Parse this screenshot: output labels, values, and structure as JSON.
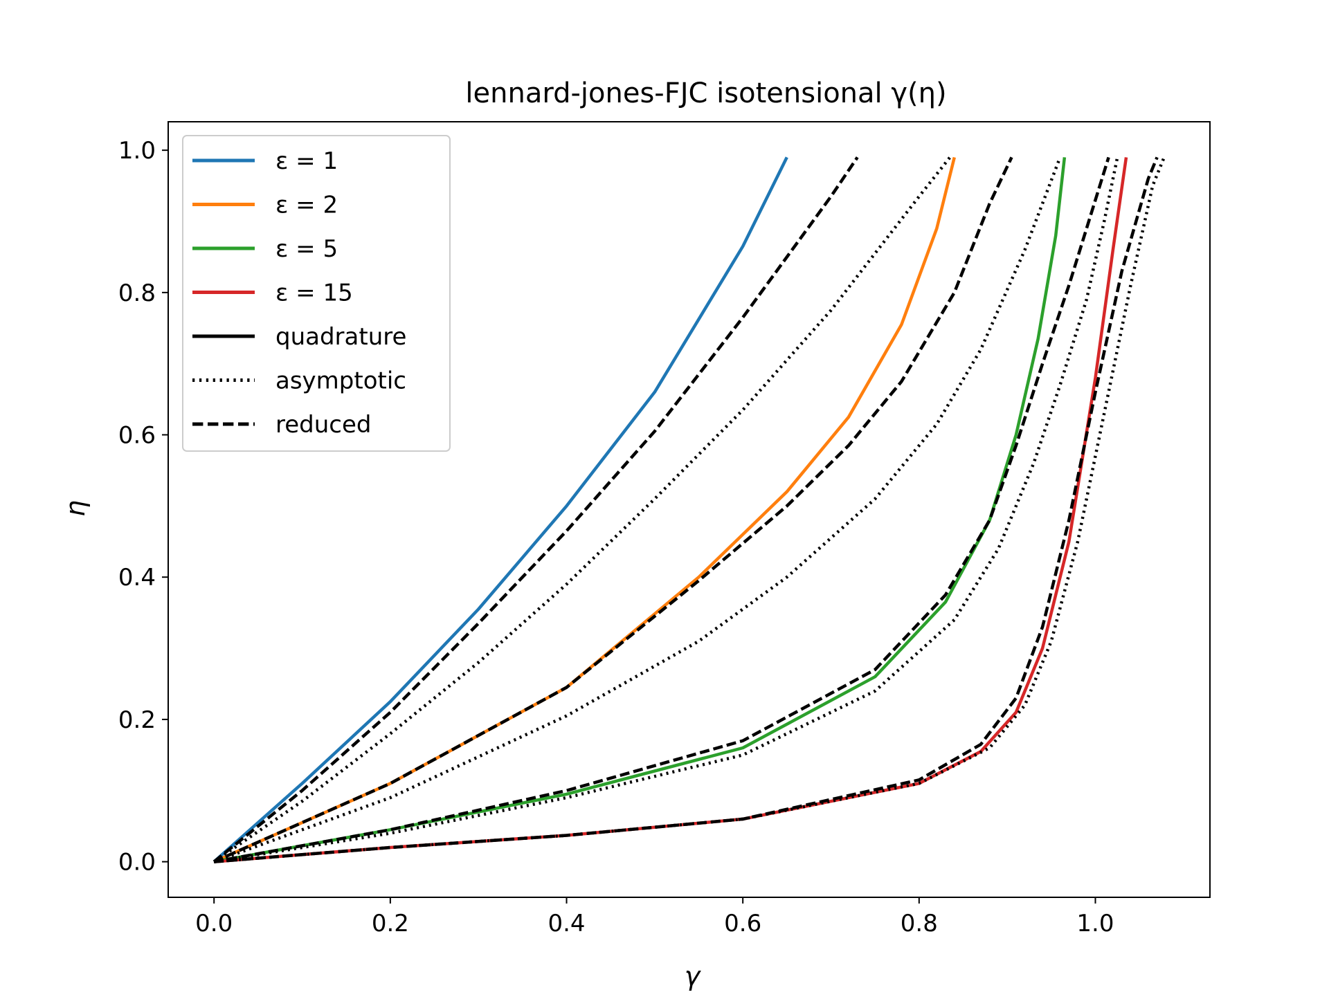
{
  "chart_data": {
    "type": "line",
    "title": "lennard-jones-FJC isotensional γ(η)",
    "xlabel": "γ",
    "ylabel": "η",
    "xlim": [
      -0.052,
      1.13
    ],
    "ylim": [
      -0.05,
      1.04
    ],
    "xticks": [
      0.0,
      0.2,
      0.4,
      0.6,
      0.8,
      1.0
    ],
    "xtick_labels": [
      "0.0",
      "0.2",
      "0.4",
      "0.6",
      "0.8",
      "1.0"
    ],
    "yticks": [
      0.0,
      0.2,
      0.4,
      0.6,
      0.8,
      1.0
    ],
    "ytick_labels": [
      "0.0",
      "0.2",
      "0.4",
      "0.6",
      "0.8",
      "1.0"
    ],
    "grid": false,
    "legend_position": "top-left",
    "legend": [
      {
        "label": "ε = 1",
        "color": "#1f77b4",
        "style": "solid"
      },
      {
        "label": "ε = 2",
        "color": "#ff7f0e",
        "style": "solid"
      },
      {
        "label": "ε = 5",
        "color": "#2ca02c",
        "style": "solid"
      },
      {
        "label": "ε = 15",
        "color": "#d62728",
        "style": "solid"
      },
      {
        "label": "quadrature",
        "color": "#000000",
        "style": "solid"
      },
      {
        "label": "asymptotic",
        "color": "#000000",
        "style": "dotted"
      },
      {
        "label": "reduced",
        "color": "#000000",
        "style": "dashed"
      }
    ],
    "series": [
      {
        "name": "ε = 1",
        "method": "quadrature",
        "color": "#1f77b4",
        "style": "solid",
        "x": [
          0.0,
          0.1,
          0.2,
          0.3,
          0.4,
          0.5,
          0.6,
          0.65
        ],
        "y": [
          0.0,
          0.11,
          0.225,
          0.355,
          0.5,
          0.66,
          0.865,
          0.99
        ]
      },
      {
        "name": "ε = 1",
        "method": "reduced",
        "color": "#000000",
        "style": "dashed",
        "x": [
          0.0,
          0.1,
          0.2,
          0.3,
          0.4,
          0.5,
          0.6,
          0.7,
          0.73
        ],
        "y": [
          0.0,
          0.1,
          0.21,
          0.335,
          0.465,
          0.605,
          0.765,
          0.935,
          0.99
        ]
      },
      {
        "name": "ε = 1",
        "method": "asymptotic",
        "color": "#000000",
        "style": "dotted",
        "x": [
          0.0,
          0.1,
          0.2,
          0.3,
          0.4,
          0.5,
          0.6,
          0.7,
          0.8,
          0.835
        ],
        "y": [
          0.0,
          0.085,
          0.18,
          0.28,
          0.39,
          0.51,
          0.635,
          0.775,
          0.935,
          0.99
        ]
      },
      {
        "name": "ε = 2",
        "method": "quadrature",
        "color": "#ff7f0e",
        "style": "solid",
        "x": [
          0.0,
          0.2,
          0.4,
          0.55,
          0.65,
          0.72,
          0.78,
          0.82,
          0.84
        ],
        "y": [
          0.0,
          0.11,
          0.245,
          0.4,
          0.52,
          0.625,
          0.755,
          0.89,
          0.99
        ]
      },
      {
        "name": "ε = 2",
        "method": "reduced",
        "color": "#000000",
        "style": "dashed",
        "x": [
          0.0,
          0.2,
          0.4,
          0.55,
          0.65,
          0.72,
          0.78,
          0.84,
          0.88,
          0.905
        ],
        "y": [
          0.0,
          0.11,
          0.245,
          0.395,
          0.5,
          0.585,
          0.675,
          0.8,
          0.925,
          0.99
        ]
      },
      {
        "name": "ε = 2",
        "method": "asymptotic",
        "color": "#000000",
        "style": "dotted",
        "x": [
          0.0,
          0.2,
          0.4,
          0.55,
          0.65,
          0.75,
          0.82,
          0.87,
          0.92,
          0.96
        ],
        "y": [
          0.0,
          0.09,
          0.205,
          0.31,
          0.4,
          0.51,
          0.615,
          0.72,
          0.86,
          0.99
        ]
      },
      {
        "name": "ε = 5",
        "method": "quadrature",
        "color": "#2ca02c",
        "style": "solid",
        "x": [
          0.0,
          0.2,
          0.4,
          0.6,
          0.75,
          0.83,
          0.88,
          0.91,
          0.935,
          0.955,
          0.965
        ],
        "y": [
          0.0,
          0.045,
          0.095,
          0.16,
          0.26,
          0.365,
          0.48,
          0.6,
          0.735,
          0.88,
          0.99
        ]
      },
      {
        "name": "ε = 5",
        "method": "reduced",
        "color": "#000000",
        "style": "dashed",
        "x": [
          0.0,
          0.2,
          0.4,
          0.6,
          0.75,
          0.83,
          0.88,
          0.91,
          0.94,
          0.97,
          1.0,
          1.015
        ],
        "y": [
          0.0,
          0.045,
          0.1,
          0.17,
          0.27,
          0.375,
          0.48,
          0.585,
          0.7,
          0.81,
          0.93,
          0.99
        ]
      },
      {
        "name": "ε = 5",
        "method": "asymptotic",
        "color": "#000000",
        "style": "dotted",
        "x": [
          0.0,
          0.2,
          0.4,
          0.6,
          0.75,
          0.84,
          0.89,
          0.93,
          0.96,
          0.99,
          1.01,
          1.025
        ],
        "y": [
          0.0,
          0.04,
          0.09,
          0.15,
          0.24,
          0.34,
          0.44,
          0.56,
          0.67,
          0.79,
          0.9,
          0.99
        ]
      },
      {
        "name": "ε = 15",
        "method": "quadrature",
        "color": "#d62728",
        "style": "solid",
        "x": [
          0.0,
          0.2,
          0.4,
          0.6,
          0.8,
          0.87,
          0.91,
          0.94,
          0.97,
          1.0,
          1.02,
          1.035
        ],
        "y": [
          0.0,
          0.02,
          0.037,
          0.06,
          0.11,
          0.155,
          0.21,
          0.3,
          0.45,
          0.68,
          0.86,
          0.99
        ]
      },
      {
        "name": "ε = 15",
        "method": "reduced",
        "color": "#000000",
        "style": "dashed",
        "x": [
          0.0,
          0.2,
          0.4,
          0.6,
          0.8,
          0.87,
          0.91,
          0.94,
          0.97,
          1.0,
          1.03,
          1.06,
          1.07
        ],
        "y": [
          0.0,
          0.02,
          0.037,
          0.06,
          0.115,
          0.165,
          0.23,
          0.33,
          0.48,
          0.66,
          0.83,
          0.96,
          0.99
        ]
      },
      {
        "name": "ε = 15",
        "method": "asymptotic",
        "color": "#000000",
        "style": "dotted",
        "x": [
          0.0,
          0.2,
          0.4,
          0.6,
          0.8,
          0.88,
          0.92,
          0.95,
          0.98,
          1.01,
          1.04,
          1.065,
          1.078
        ],
        "y": [
          0.0,
          0.02,
          0.037,
          0.06,
          0.11,
          0.16,
          0.22,
          0.31,
          0.45,
          0.63,
          0.81,
          0.95,
          0.99
        ]
      }
    ]
  }
}
